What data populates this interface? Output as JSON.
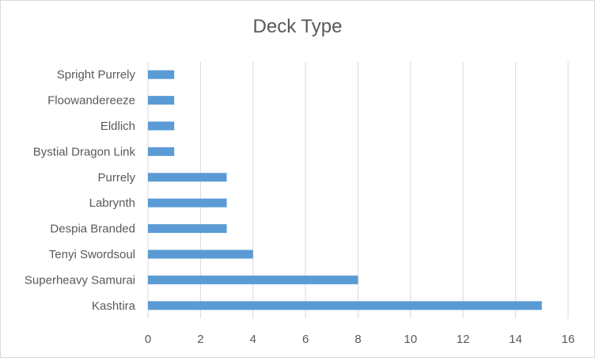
{
  "chart_data": {
    "type": "bar",
    "orientation": "horizontal",
    "title": "Deck Type",
    "xlabel": "",
    "ylabel": "",
    "categories": [
      "Kashtira",
      "Superheavy Samurai",
      "Tenyi Swordsoul",
      "Despia Branded",
      "Labrynth",
      "Purrely",
      "Bystial Dragon Link",
      "Eldlich",
      "Floowandereeze",
      "Spright Purrely"
    ],
    "values": [
      15,
      8,
      4,
      3,
      3,
      3,
      1,
      1,
      1,
      1
    ],
    "xlim": [
      0,
      16
    ],
    "xticks": [
      0,
      2,
      4,
      6,
      8,
      10,
      12,
      14,
      16
    ],
    "grid": true,
    "legend": "none",
    "bar_color": "#5b9bd5",
    "grid_color": "#d9d9d9"
  }
}
